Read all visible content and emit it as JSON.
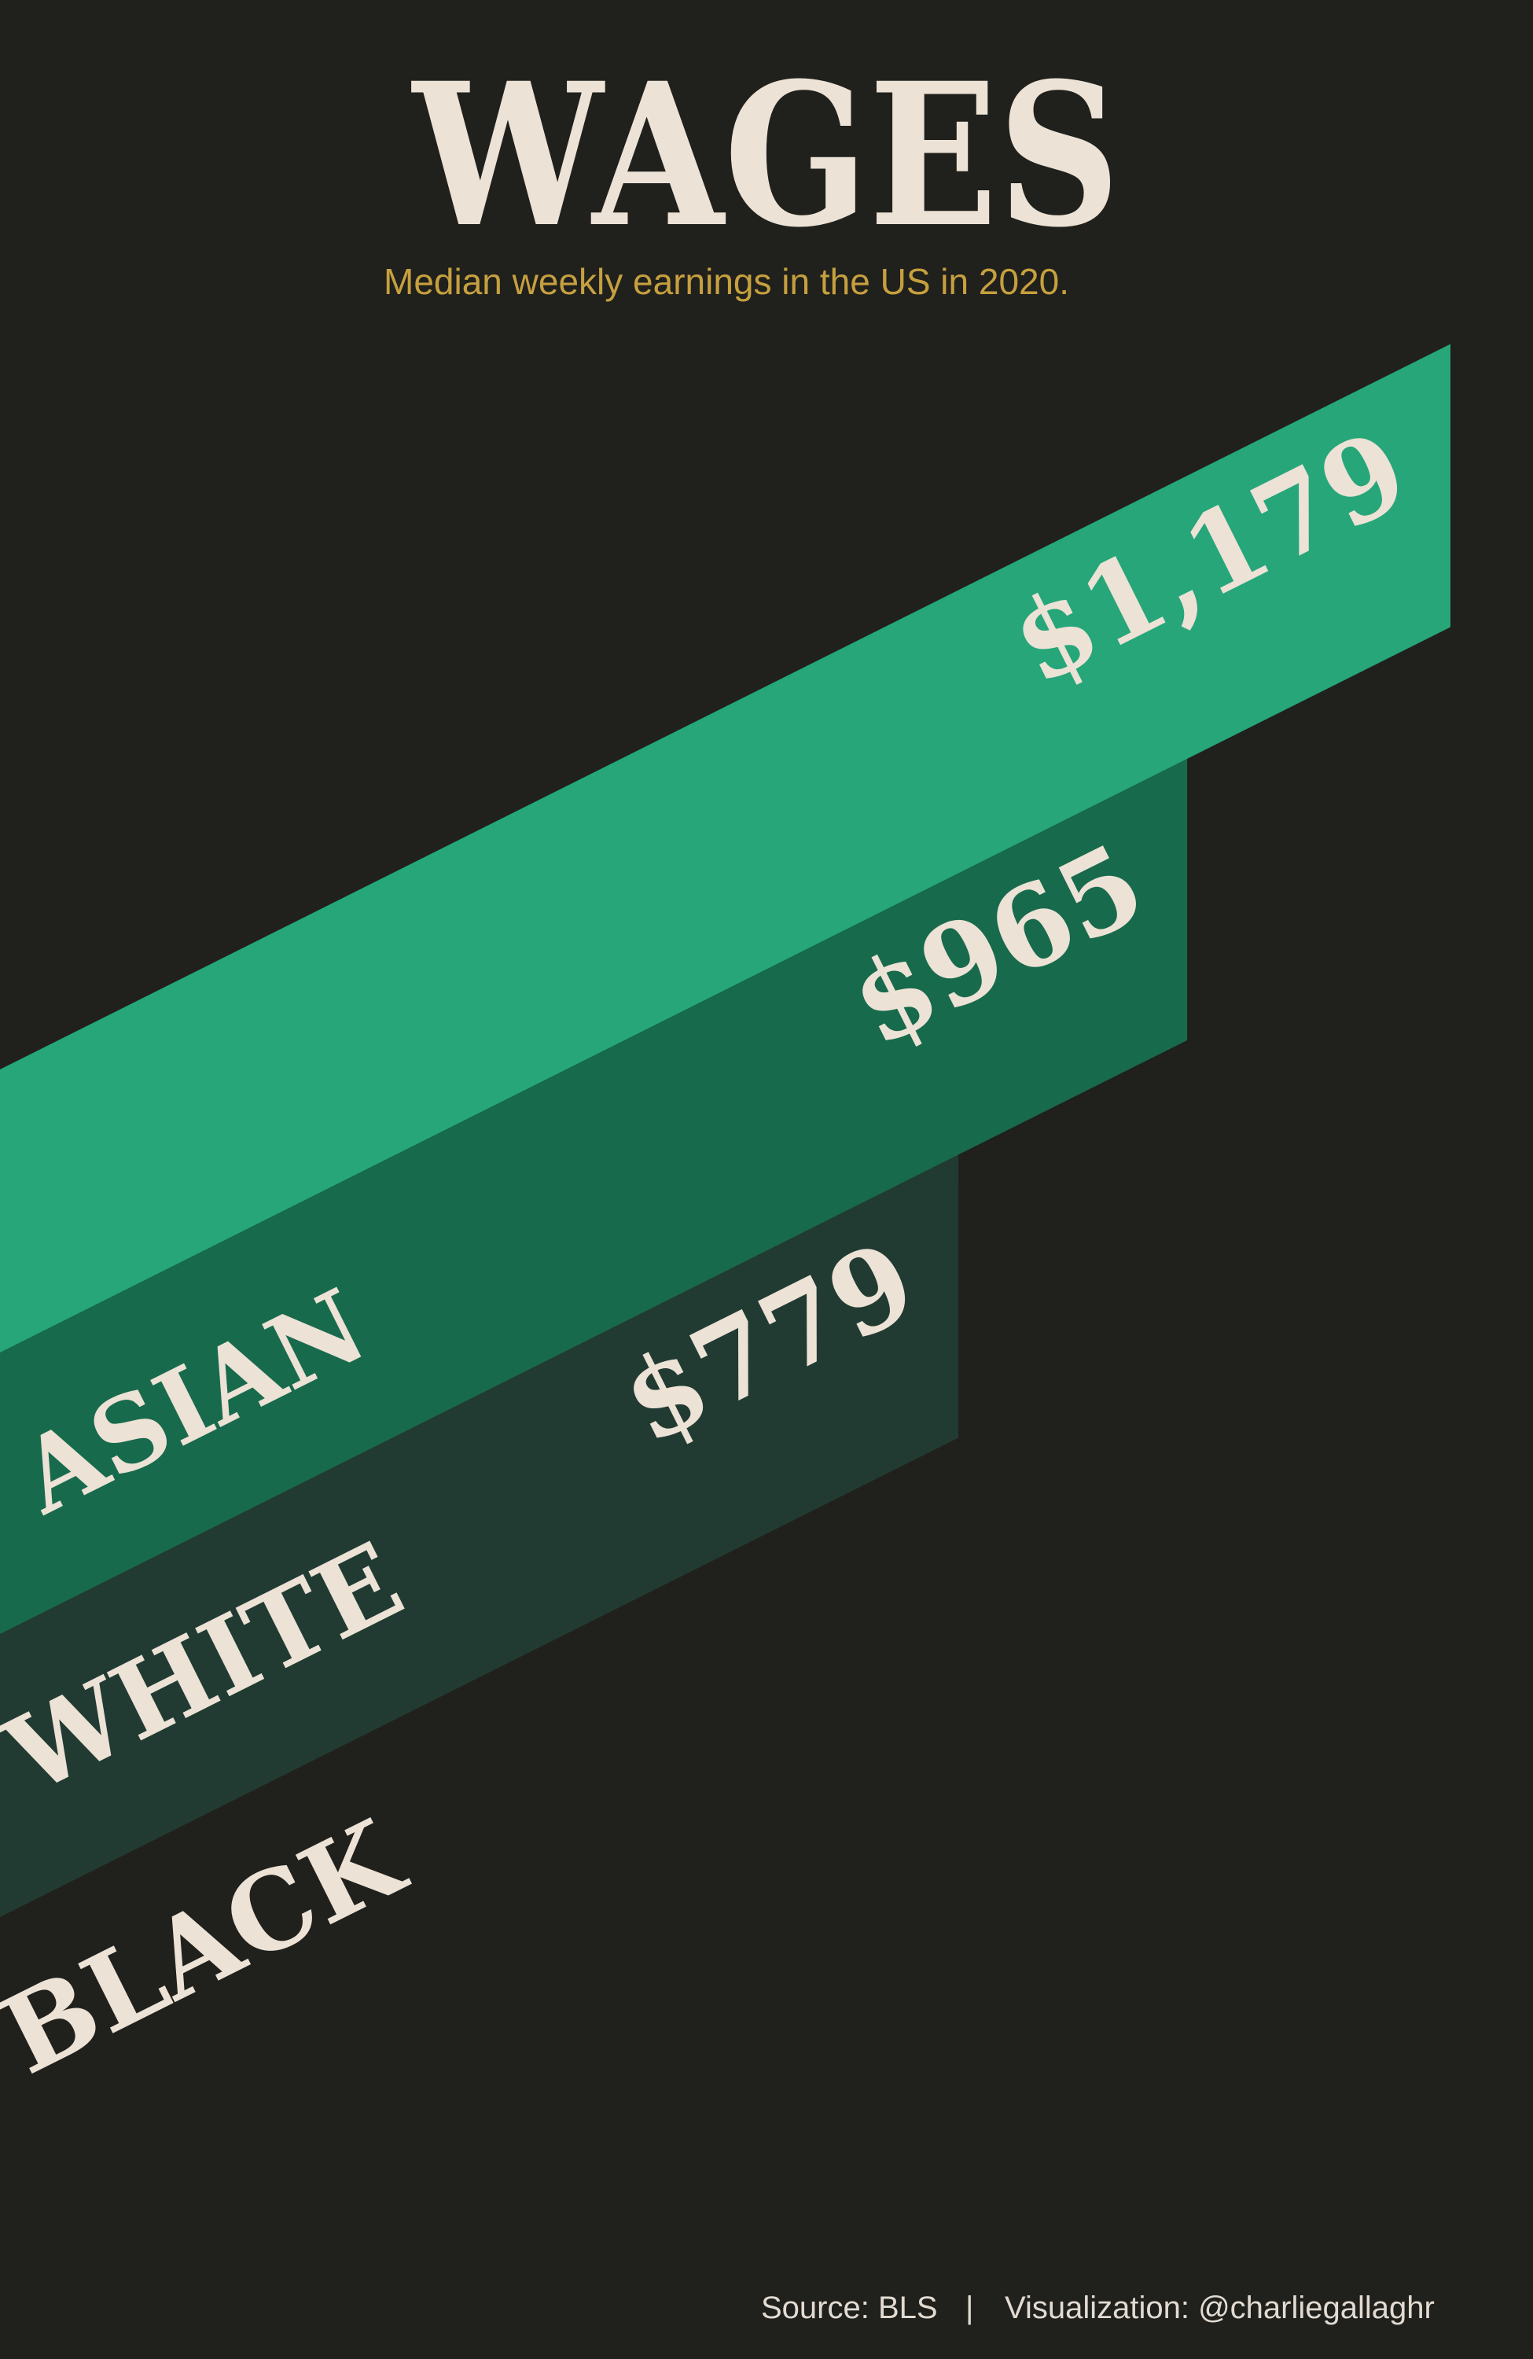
{
  "chart_data": {
    "type": "bar",
    "title": "WAGES",
    "subtitle": "Median weekly earnings in the US in 2020.",
    "categories": [
      "ASIAN",
      "WHITE",
      "BLACK"
    ],
    "values": [
      1179,
      965,
      779
    ],
    "value_labels": [
      "$1,179",
      "$965",
      "$779"
    ],
    "colors": [
      "#26a679",
      "#186a4c",
      "#213b33"
    ]
  },
  "footer": {
    "source": "Source: BLS",
    "separator": "|",
    "credit": "Visualization: @charliegallaghr"
  },
  "colors": {
    "background": "#20201c",
    "title": "#ece2d5",
    "subtitle": "#c6a03f",
    "label": "#ece2d5",
    "footer": "#e2dbd2"
  }
}
